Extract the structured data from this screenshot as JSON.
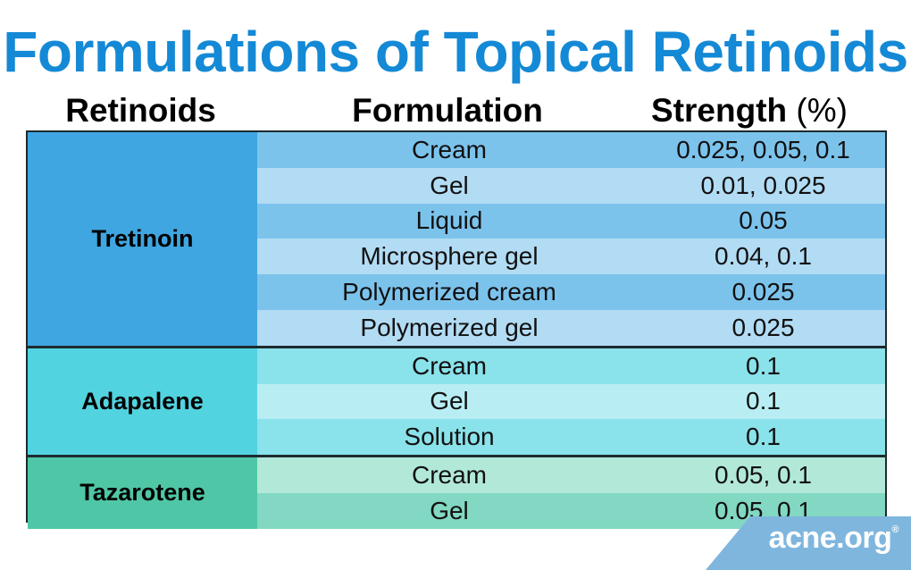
{
  "title": "Formulations of Topical Retinoids",
  "headers": {
    "retinoids": "Retinoids",
    "formulation": "Formulation",
    "strength": "Strength",
    "strength_unit": "(%)"
  },
  "groups": [
    {
      "name": "Tretinoin",
      "color": "#3fa6e1",
      "rows": [
        {
          "formulation": "Cream",
          "strength": "0.025, 0.05, 0.1"
        },
        {
          "formulation": "Gel",
          "strength": "0.01, 0.025"
        },
        {
          "formulation": "Liquid",
          "strength": "0.05"
        },
        {
          "formulation": "Microsphere gel",
          "strength": "0.04, 0.1"
        },
        {
          "formulation": "Polymerized cream",
          "strength": "0.025"
        },
        {
          "formulation": "Polymerized gel",
          "strength": "0.025"
        }
      ]
    },
    {
      "name": "Adapalene",
      "color": "#52d3e0",
      "rows": [
        {
          "formulation": "Cream",
          "strength": "0.1"
        },
        {
          "formulation": "Gel",
          "strength": "0.1"
        },
        {
          "formulation": "Solution",
          "strength": "0.1"
        }
      ]
    },
    {
      "name": "Tazarotene",
      "color": "#4fc7a6",
      "rows": [
        {
          "formulation": "Cream",
          "strength": "0.05, 0.1"
        },
        {
          "formulation": "Gel",
          "strength": "0.05, 0.1"
        }
      ]
    }
  ],
  "logo": {
    "text": "acne.org",
    "mark": "®"
  },
  "colors": {
    "title": "#1489d6",
    "logo_band": "#7fb6dd"
  }
}
